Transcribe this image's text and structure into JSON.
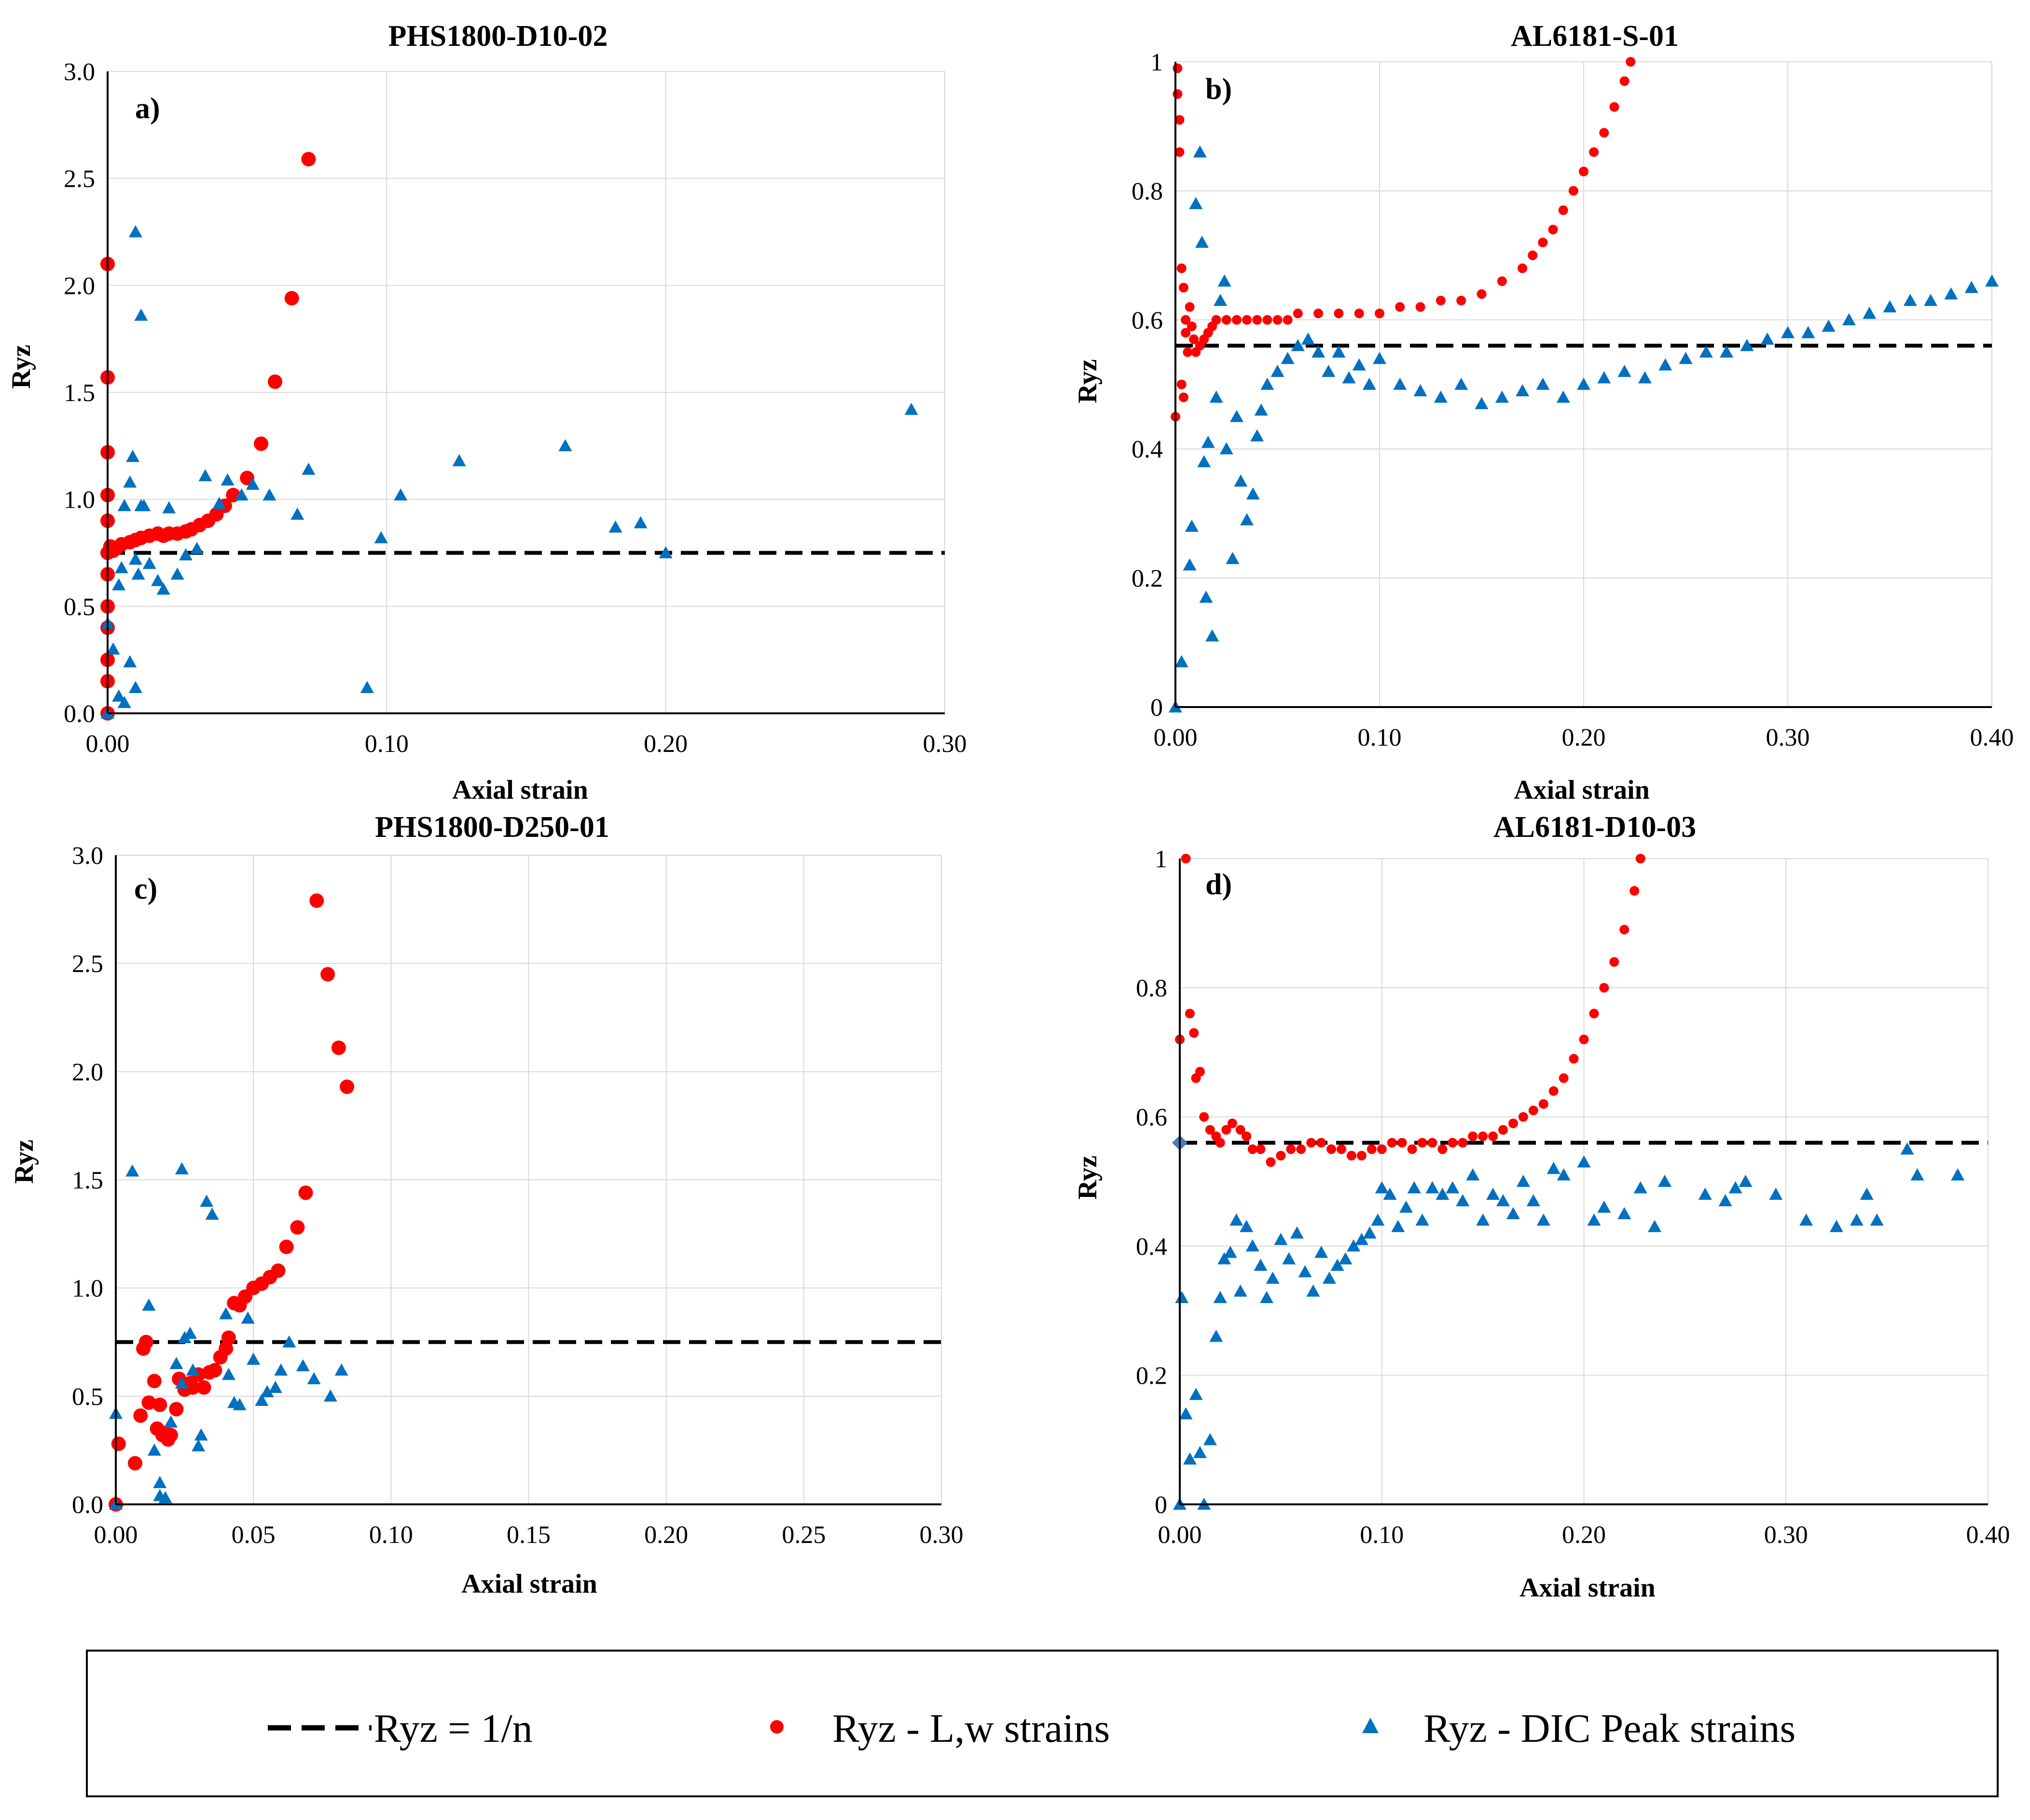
{
  "figure": {
    "legend": {
      "entries": [
        {
          "label": "Ryz = 1/n",
          "marker": "dashed-line",
          "color": "#000000"
        },
        {
          "label": "Ryz - L,w strains",
          "marker": "circle",
          "color": "#ff0000"
        },
        {
          "label": "Ryz - DIC Peak strains",
          "marker": "triangle",
          "color": "#0070c0"
        }
      ]
    },
    "colors": {
      "red": "#ff0000",
      "blue": "#0070c0",
      "grid": "#d9d9d9",
      "axis": "#000000"
    }
  },
  "chart_data": [
    {
      "type": "scatter",
      "panel": "a)",
      "title": "PHS1800-D10-02",
      "xlabel": "Axial strain",
      "ylabel": "Ryz",
      "xlim": [
        0,
        0.3
      ],
      "ylim": [
        0,
        3
      ],
      "xticks": [
        0,
        0.1,
        0.2,
        0.3
      ],
      "yticks": [
        0,
        0.5,
        1,
        1.5,
        2,
        2.5,
        3
      ],
      "xtick_labels": [
        "0.00",
        "0.10",
        "0.20",
        "0.30"
      ],
      "ytick_labels": [
        "0.0",
        "0.5",
        "1.0",
        "1.5",
        "2.0",
        "2.5",
        "3.0"
      ],
      "hline": 0.75,
      "series": [
        {
          "name": "Ryz - L,w strains",
          "marker": "circle",
          "x": [
            0,
            0,
            0,
            0,
            0,
            0,
            0,
            0,
            0,
            0,
            0,
            0,
            0.001,
            0.002,
            0.003,
            0.005,
            0.008,
            0.01,
            0.012,
            0.015,
            0.018,
            0.02,
            0.022,
            0.025,
            0.028,
            0.03,
            0.033,
            0.036,
            0.039,
            0.042,
            0.045,
            0.05,
            0.055,
            0.06,
            0.066,
            0.072
          ],
          "y": [
            0,
            0.15,
            0.25,
            0.4,
            0.5,
            0.65,
            0.75,
            0.9,
            1.02,
            1.22,
            1.57,
            2.1,
            0.78,
            0.76,
            0.77,
            0.79,
            0.8,
            0.81,
            0.82,
            0.83,
            0.84,
            0.83,
            0.84,
            0.84,
            0.85,
            0.86,
            0.88,
            0.9,
            0.93,
            0.97,
            1.02,
            1.1,
            1.26,
            1.55,
            1.94,
            2.59
          ]
        },
        {
          "name": "Ryz - DIC Peak strains",
          "marker": "triangle",
          "x": [
            0,
            0,
            0.002,
            0.004,
            0.005,
            0.006,
            0.008,
            0.009,
            0.01,
            0.011,
            0.012,
            0.013,
            0.015,
            0.018,
            0.02,
            0.022,
            0.025,
            0.028,
            0.032,
            0.035,
            0.04,
            0.043,
            0.048,
            0.052,
            0.058,
            0.068,
            0.072,
            0.093,
            0.098,
            0.105,
            0.126,
            0.164,
            0.182,
            0.191,
            0.2,
            0.288,
            0.01,
            0.012,
            0.004,
            0.008,
            0.006,
            0.01
          ],
          "y": [
            0,
            0.42,
            0.3,
            0.6,
            0.68,
            0.97,
            1.08,
            1.2,
            0.72,
            0.65,
            0.97,
            0.97,
            0.7,
            0.62,
            0.58,
            0.96,
            0.65,
            0.74,
            0.77,
            1.11,
            0.98,
            1.09,
            1.02,
            1.07,
            1.02,
            0.93,
            1.14,
            0.12,
            0.82,
            1.02,
            1.18,
            1.25,
            0.87,
            0.89,
            0.75,
            1.42,
            2.25,
            1.86,
            0.08,
            0.24,
            0.05,
            0.12
          ]
        }
      ]
    },
    {
      "type": "scatter",
      "panel": "b)",
      "title": "AL6181-S-01",
      "xlabel": "Axial strain",
      "ylabel": "Ryz",
      "xlim": [
        0,
        0.4
      ],
      "ylim": [
        0,
        1
      ],
      "xticks": [
        0,
        0.1,
        0.2,
        0.3,
        0.4
      ],
      "yticks": [
        0,
        0.2,
        0.4,
        0.6,
        0.8,
        1
      ],
      "xtick_labels": [
        "0.00",
        "0.10",
        "0.20",
        "0.30",
        "0.40"
      ],
      "ytick_labels": [
        "0",
        "0.2",
        "0.4",
        "0.6",
        "0.8",
        "1"
      ],
      "hline": 0.56,
      "series": [
        {
          "name": "Ryz - L,w strains",
          "marker": "circle",
          "x": [
            0,
            0.001,
            0.001,
            0.002,
            0.002,
            0.003,
            0.003,
            0.004,
            0.004,
            0.005,
            0.005,
            0.006,
            0.007,
            0.008,
            0.009,
            0.01,
            0.012,
            0.014,
            0.016,
            0.018,
            0.02,
            0.025,
            0.03,
            0.035,
            0.04,
            0.045,
            0.05,
            0.055,
            0.06,
            0.07,
            0.08,
            0.09,
            0.1,
            0.11,
            0.12,
            0.13,
            0.14,
            0.15,
            0.16,
            0.17,
            0.175,
            0.18,
            0.185,
            0.19,
            0.195,
            0.2,
            0.205,
            0.21,
            0.215,
            0.22,
            0.223
          ],
          "y": [
            0.45,
            0.99,
            0.95,
            0.91,
            0.86,
            0.5,
            0.68,
            0.65,
            0.48,
            0.6,
            0.58,
            0.55,
            0.62,
            0.59,
            0.57,
            0.55,
            0.56,
            0.57,
            0.58,
            0.59,
            0.6,
            0.6,
            0.6,
            0.6,
            0.6,
            0.6,
            0.6,
            0.6,
            0.61,
            0.61,
            0.61,
            0.61,
            0.61,
            0.62,
            0.62,
            0.63,
            0.63,
            0.64,
            0.66,
            0.68,
            0.7,
            0.72,
            0.74,
            0.77,
            0.8,
            0.83,
            0.86,
            0.89,
            0.93,
            0.97,
            1.0
          ]
        },
        {
          "name": "Ryz - DIC Peak strains",
          "marker": "triangle",
          "x": [
            0,
            0.003,
            0.007,
            0.008,
            0.01,
            0.012,
            0.013,
            0.014,
            0.015,
            0.016,
            0.018,
            0.02,
            0.022,
            0.024,
            0.025,
            0.028,
            0.03,
            0.032,
            0.035,
            0.038,
            0.04,
            0.042,
            0.045,
            0.05,
            0.055,
            0.06,
            0.065,
            0.07,
            0.075,
            0.08,
            0.085,
            0.09,
            0.095,
            0.1,
            0.11,
            0.12,
            0.13,
            0.14,
            0.15,
            0.16,
            0.17,
            0.18,
            0.19,
            0.2,
            0.21,
            0.22,
            0.23,
            0.24,
            0.25,
            0.26,
            0.27,
            0.28,
            0.29,
            0.3,
            0.31,
            0.32,
            0.33,
            0.34,
            0.35,
            0.36,
            0.37,
            0.38,
            0.39,
            0.4
          ],
          "y": [
            0,
            0.07,
            0.22,
            0.28,
            0.78,
            0.86,
            0.72,
            0.38,
            0.17,
            0.41,
            0.11,
            0.48,
            0.63,
            0.66,
            0.4,
            0.23,
            0.45,
            0.35,
            0.29,
            0.33,
            0.42,
            0.46,
            0.5,
            0.52,
            0.54,
            0.56,
            0.57,
            0.55,
            0.52,
            0.55,
            0.51,
            0.53,
            0.5,
            0.54,
            0.5,
            0.49,
            0.48,
            0.5,
            0.47,
            0.48,
            0.49,
            0.5,
            0.48,
            0.5,
            0.51,
            0.52,
            0.51,
            0.53,
            0.54,
            0.55,
            0.55,
            0.56,
            0.57,
            0.58,
            0.58,
            0.59,
            0.6,
            0.61,
            0.62,
            0.63,
            0.63,
            0.64,
            0.65,
            0.66
          ]
        }
      ]
    },
    {
      "type": "scatter",
      "panel": "c)",
      "title": "PHS1800-D250-01",
      "xlabel": "Axial strain",
      "ylabel": "Ryz",
      "xlim": [
        0,
        0.3
      ],
      "ylim": [
        0,
        3
      ],
      "xticks": [
        0,
        0.05,
        0.1,
        0.15,
        0.2,
        0.25,
        0.3
      ],
      "yticks": [
        0,
        0.5,
        1,
        1.5,
        2,
        2.5,
        3
      ],
      "xtick_labels": [
        "0.00",
        "0.05",
        "0.10",
        "0.15",
        "0.20",
        "0.25",
        "0.30"
      ],
      "ytick_labels": [
        "0.0",
        "0.5",
        "1.0",
        "1.5",
        "2.0",
        "2.5",
        "3.0"
      ],
      "hline": 0.75,
      "series": [
        {
          "name": "Ryz - L,w strains",
          "marker": "circle",
          "x": [
            0,
            0.001,
            0.007,
            0.009,
            0.01,
            0.011,
            0.012,
            0.014,
            0.015,
            0.016,
            0.017,
            0.018,
            0.019,
            0.02,
            0.022,
            0.023,
            0.025,
            0.027,
            0.028,
            0.03,
            0.032,
            0.034,
            0.036,
            0.038,
            0.04,
            0.041,
            0.043,
            0.045,
            0.047,
            0.05,
            0.053,
            0.056,
            0.059,
            0.062,
            0.066,
            0.069,
            0.073,
            0.077,
            0.081,
            0.084
          ],
          "y": [
            0,
            0.28,
            0.19,
            0.41,
            0.72,
            0.75,
            0.47,
            0.57,
            0.35,
            0.46,
            0.32,
            0.33,
            0.3,
            0.32,
            0.44,
            0.58,
            0.53,
            0.56,
            0.54,
            0.6,
            0.54,
            0.61,
            0.62,
            0.68,
            0.72,
            0.77,
            0.93,
            0.92,
            0.96,
            1.0,
            1.02,
            1.05,
            1.08,
            1.19,
            1.28,
            1.44,
            2.79,
            2.45,
            2.11,
            1.93
          ]
        },
        {
          "name": "Ryz - DIC Peak strains",
          "marker": "triangle",
          "x": [
            0,
            0,
            0.006,
            0.012,
            0.014,
            0.016,
            0.018,
            0.02,
            0.022,
            0.024,
            0.025,
            0.027,
            0.028,
            0.03,
            0.031,
            0.033,
            0.035,
            0.04,
            0.041,
            0.043,
            0.045,
            0.048,
            0.05,
            0.053,
            0.055,
            0.058,
            0.06,
            0.063,
            0.068,
            0.072,
            0.078,
            0.082,
            0.024,
            0.016
          ],
          "y": [
            0,
            0.42,
            1.54,
            0.92,
            0.25,
            0.1,
            0.03,
            0.38,
            0.65,
            0.56,
            0.77,
            0.79,
            0.62,
            0.27,
            0.32,
            1.4,
            1.34,
            0.88,
            0.6,
            0.47,
            0.46,
            0.86,
            0.67,
            0.48,
            0.52,
            0.54,
            0.62,
            0.75,
            0.64,
            0.58,
            0.5,
            0.62,
            1.55,
            0.04
          ]
        }
      ]
    },
    {
      "type": "scatter",
      "panel": "d)",
      "title": "AL6181-D10-03",
      "xlabel": "Axial strain",
      "ylabel": "Ryz",
      "xlim": [
        0,
        0.4
      ],
      "ylim": [
        0,
        1
      ],
      "xticks": [
        0,
        0.1,
        0.2,
        0.3,
        0.4
      ],
      "yticks": [
        0,
        0.2,
        0.4,
        0.6,
        0.8,
        1
      ],
      "xtick_labels": [
        "0.00",
        "0.10",
        "0.20",
        "0.30",
        "0.40"
      ],
      "ytick_labels": [
        "0",
        "0.2",
        "0.4",
        "0.6",
        "0.8",
        "1"
      ],
      "hline": 0.56,
      "hline_marker": {
        "x": 0,
        "y": 0.56,
        "color": "#4a7ab8"
      },
      "series": [
        {
          "name": "Ryz - L,w strains",
          "marker": "circle",
          "x": [
            0,
            0.003,
            0.005,
            0.007,
            0.008,
            0.01,
            0.012,
            0.015,
            0.018,
            0.02,
            0.023,
            0.026,
            0.03,
            0.033,
            0.036,
            0.04,
            0.045,
            0.05,
            0.055,
            0.06,
            0.065,
            0.07,
            0.075,
            0.08,
            0.085,
            0.09,
            0.095,
            0.1,
            0.105,
            0.11,
            0.115,
            0.12,
            0.125,
            0.13,
            0.135,
            0.14,
            0.145,
            0.15,
            0.155,
            0.16,
            0.165,
            0.17,
            0.175,
            0.18,
            0.185,
            0.19,
            0.195,
            0.2,
            0.205,
            0.21,
            0.215,
            0.22,
            0.225,
            0.228
          ],
          "y": [
            0.72,
            1.0,
            0.76,
            0.73,
            0.66,
            0.67,
            0.6,
            0.58,
            0.57,
            0.56,
            0.58,
            0.59,
            0.58,
            0.57,
            0.55,
            0.55,
            0.53,
            0.54,
            0.55,
            0.55,
            0.56,
            0.56,
            0.55,
            0.55,
            0.54,
            0.54,
            0.55,
            0.55,
            0.56,
            0.56,
            0.55,
            0.56,
            0.56,
            0.55,
            0.56,
            0.56,
            0.57,
            0.57,
            0.57,
            0.58,
            0.59,
            0.6,
            0.61,
            0.62,
            0.64,
            0.66,
            0.69,
            0.72,
            0.76,
            0.8,
            0.84,
            0.89,
            0.95,
            1.0
          ]
        },
        {
          "name": "Ryz - DIC Peak strains",
          "marker": "triangle",
          "x": [
            0,
            0.001,
            0.003,
            0.005,
            0.008,
            0.01,
            0.012,
            0.015,
            0.018,
            0.02,
            0.022,
            0.025,
            0.028,
            0.03,
            0.033,
            0.036,
            0.04,
            0.043,
            0.046,
            0.05,
            0.054,
            0.058,
            0.062,
            0.066,
            0.07,
            0.074,
            0.078,
            0.082,
            0.086,
            0.09,
            0.094,
            0.098,
            0.1,
            0.104,
            0.108,
            0.112,
            0.116,
            0.12,
            0.125,
            0.13,
            0.135,
            0.14,
            0.145,
            0.15,
            0.155,
            0.16,
            0.165,
            0.17,
            0.175,
            0.18,
            0.185,
            0.19,
            0.2,
            0.205,
            0.21,
            0.22,
            0.228,
            0.235,
            0.24,
            0.26,
            0.27,
            0.275,
            0.28,
            0.295,
            0.31,
            0.325,
            0.335,
            0.34,
            0.345,
            0.36,
            0.365,
            0.385
          ],
          "y": [
            0,
            0.32,
            0.14,
            0.07,
            0.17,
            0.08,
            0.0,
            0.1,
            0.26,
            0.32,
            0.38,
            0.39,
            0.44,
            0.33,
            0.43,
            0.4,
            0.37,
            0.32,
            0.35,
            0.41,
            0.38,
            0.42,
            0.36,
            0.33,
            0.39,
            0.35,
            0.37,
            0.38,
            0.4,
            0.41,
            0.42,
            0.44,
            0.49,
            0.48,
            0.43,
            0.46,
            0.49,
            0.44,
            0.49,
            0.48,
            0.49,
            0.47,
            0.51,
            0.44,
            0.48,
            0.47,
            0.45,
            0.5,
            0.47,
            0.44,
            0.52,
            0.51,
            0.53,
            0.44,
            0.46,
            0.45,
            0.49,
            0.43,
            0.5,
            0.48,
            0.47,
            0.49,
            0.5,
            0.48,
            0.44,
            0.43,
            0.44,
            0.48,
            0.44,
            0.55,
            0.51,
            0.51
          ]
        }
      ]
    }
  ]
}
